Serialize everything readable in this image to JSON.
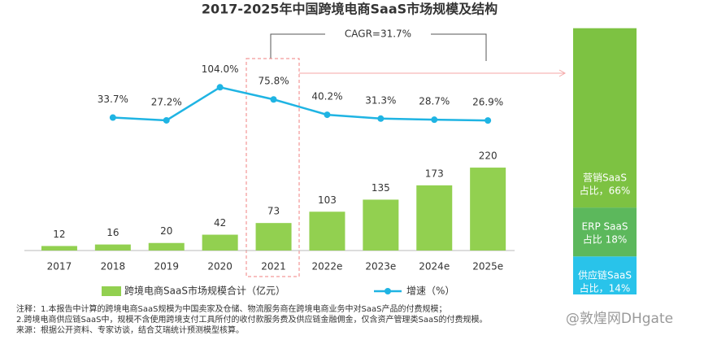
{
  "chart_data": [
    {
      "type": "bar_line",
      "title": "2017-2025年中国跨境电商SaaS市场规模及结构",
      "annotation": "CAGR=31.7%",
      "categories": [
        "2017",
        "2018",
        "2019",
        "2020",
        "2021",
        "2022e",
        "2023e",
        "2024e",
        "2025e"
      ],
      "series": [
        {
          "name": "跨境电商SaaS市场规模合计（亿元）",
          "color": "#92d050",
          "values": [
            12,
            16,
            20,
            42,
            73,
            103,
            135,
            173,
            220
          ]
        },
        {
          "name": "增速（%）",
          "color": "#1fb4e3",
          "axis": "y2",
          "values": [
            null,
            33.7,
            27.2,
            104.0,
            75.8,
            40.2,
            31.3,
            28.7,
            26.9
          ],
          "value_labels": [
            null,
            "33.7%",
            "27.2%",
            "104.0%",
            "75.8%",
            "40.2%",
            "31.3%",
            "28.7%",
            "26.9%"
          ]
        }
      ],
      "ylim": [
        0,
        600
      ],
      "y2lim": [
        -275,
        250
      ],
      "grid": false
    },
    {
      "type": "stacked_bar",
      "series": [
        {
          "name": "供应链SaaS",
          "color": "#29c3ea",
          "values": [
            14
          ],
          "value_labels": [
            "占比，14%"
          ]
        },
        {
          "name": "ERP SaaS",
          "color": "#5cb85c",
          "values": [
            18
          ],
          "value_labels": [
            "占比 18%"
          ]
        },
        {
          "name": "营销SaaS",
          "color": "#7dc242",
          "values": [
            66
          ],
          "value_labels": [
            "占比，66%"
          ]
        }
      ],
      "ylim": [
        0,
        100
      ]
    }
  ],
  "notes": [
    "注释：1.本报告中计算的跨境电商SaaS规模为中国卖家及仓储、物流服务商在跨境电商业务中对SaaS产品的付费规模；",
    "2.跨境电商供应链SaaS中，规模不含使用跨境支付工具所付的收付款服务费及供应链金融佣金，仅含资产管理类SaaS的付费规模。",
    "来源：根据公开资料、专家访谈，结合艾瑞统计预测模型核算。"
  ],
  "watermark": "@敦煌网DHgate"
}
